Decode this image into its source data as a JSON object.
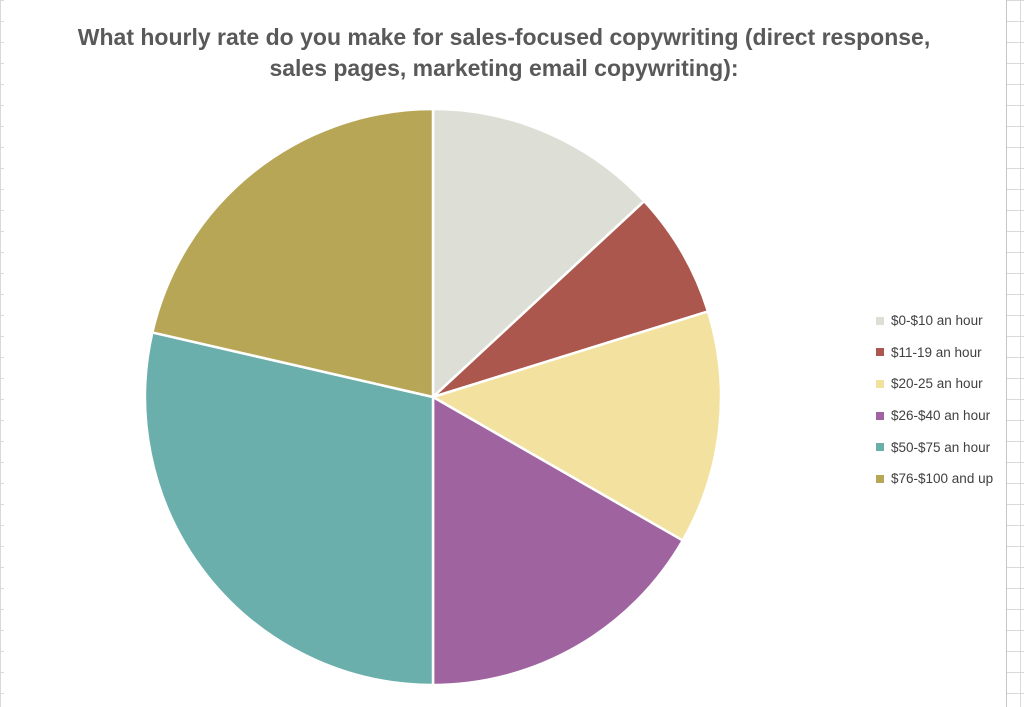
{
  "chart_data": {
    "type": "pie",
    "title": "What hourly rate do you make for sales-focused copywriting (direct response, sales pages, marketing email copywriting):",
    "categories": [
      "$0-$10 an hour",
      "$11-19 an hour",
      "$20-25 an hour",
      "$26-$40 an hour",
      "$50-$75 an hour",
      "$76-$100 and up"
    ],
    "values": [
      13.1,
      7.1,
      13.1,
      16.7,
      28.6,
      21.4
    ],
    "colors": [
      "#dddfd6",
      "#ab574e",
      "#f3e29f",
      "#9f64a0",
      "#6aafab",
      "#b8a657"
    ],
    "legend_position": "right"
  }
}
